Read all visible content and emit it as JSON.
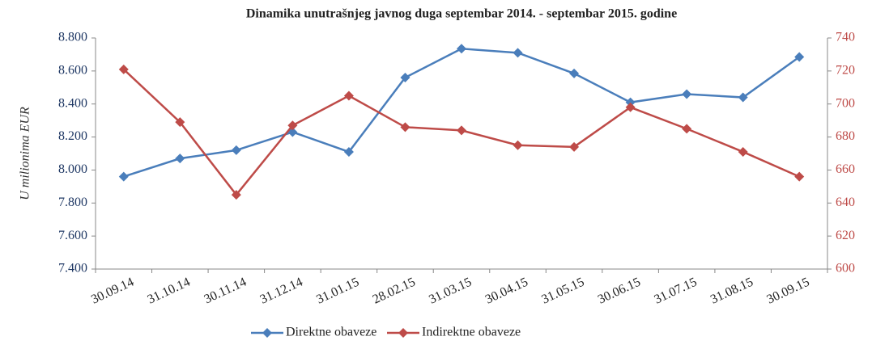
{
  "chart_data": {
    "type": "line",
    "title": "Dinamika unutrašnjeg javnog duga septembar 2014. - septembar 2015. godine",
    "y_label": "U milionima EUR",
    "categories": [
      "30.09.14",
      "31.10.14",
      "30.11.14",
      "31.12.14",
      "31.01.15",
      "28.02.15",
      "31.03.15",
      "30.04.15",
      "31.05.15",
      "30.06.15",
      "31.07.15",
      "31.08.15",
      "30.09.15"
    ],
    "series": [
      {
        "name": "Direktne obaveze",
        "color": "#4a7ebb",
        "values": [
          7960,
          8070,
          8120,
          8230,
          8110,
          8560,
          8735,
          8710,
          8585,
          8410,
          8460,
          8440,
          8685
        ]
      },
      {
        "name": "Indirektne obaveze",
        "color": "#be4b48",
        "axis": "y2",
        "values": [
          721,
          689,
          645,
          687,
          705,
          686,
          684,
          675,
          674,
          698,
          685,
          671,
          656
        ]
      }
    ],
    "ylim": [
      7400,
      8800
    ],
    "yticks": [
      {
        "value": 7400,
        "label": "7.400"
      },
      {
        "value": 7600,
        "label": "7.600"
      },
      {
        "value": 7800,
        "label": "7.800"
      },
      {
        "value": 8000,
        "label": "8.000"
      },
      {
        "value": 8200,
        "label": "8.200"
      },
      {
        "value": 8400,
        "label": "8.400"
      },
      {
        "value": 8600,
        "label": "8.600"
      },
      {
        "value": 8800,
        "label": "8.800"
      }
    ],
    "y2lim": [
      600,
      740
    ],
    "y2ticks": [
      600,
      620,
      640,
      660,
      680,
      700,
      720,
      740
    ],
    "legend": "bottom"
  }
}
